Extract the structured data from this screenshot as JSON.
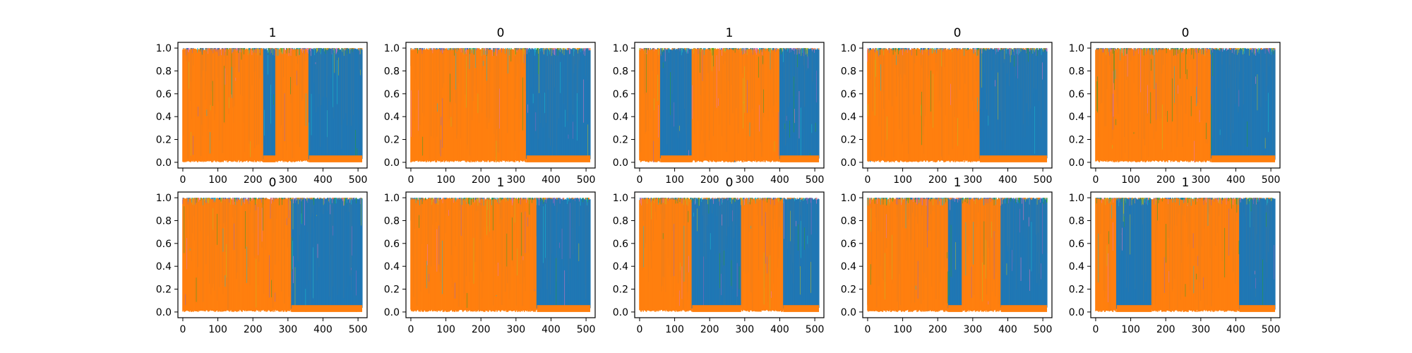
{
  "colors": {
    "blue": "#1f77b4",
    "orange": "#ff7f0e",
    "cyan": "#17becf",
    "olive": "#bcbd22",
    "green": "#2ca02c",
    "pink": "#e377c2",
    "purple": "#9467bd",
    "frame": "#000000"
  },
  "chart_data": [
    {
      "type": "line",
      "title": "1",
      "xlim": [
        -14,
        526
      ],
      "ylim": [
        -0.05,
        1.05
      ],
      "x_ticks": [
        0,
        100,
        200,
        300,
        400,
        500
      ],
      "y_ticks": [
        "0.0",
        "0.2",
        "0.4",
        "0.6",
        "0.8",
        "1.0"
      ],
      "series": [
        {
          "values": "high/low switching 0-1"
        }
      ],
      "orange_regions": [
        [
          0,
          230
        ],
        [
          265,
          360
        ]
      ],
      "blue_regions": [
        [
          230,
          265
        ],
        [
          360,
          512
        ]
      ],
      "grid": false
    },
    {
      "type": "line",
      "title": "0",
      "xlim": [
        -14,
        526
      ],
      "ylim": [
        -0.05,
        1.05
      ],
      "x_ticks": [
        0,
        100,
        200,
        300,
        400,
        500
      ],
      "y_ticks": [
        "0.0",
        "0.2",
        "0.4",
        "0.6",
        "0.8",
        "1.0"
      ],
      "orange_regions": [
        [
          0,
          330
        ]
      ],
      "blue_regions": [
        [
          330,
          512
        ]
      ],
      "grid": false
    },
    {
      "type": "line",
      "title": "1",
      "xlim": [
        -14,
        526
      ],
      "ylim": [
        -0.05,
        1.05
      ],
      "x_ticks": [
        0,
        100,
        200,
        300,
        400,
        500
      ],
      "y_ticks": [
        "0.0",
        "0.2",
        "0.4",
        "0.6",
        "0.8",
        "1.0"
      ],
      "orange_regions": [
        [
          0,
          60
        ],
        [
          150,
          400
        ]
      ],
      "blue_regions": [
        [
          60,
          150
        ],
        [
          400,
          512
        ]
      ],
      "grid": false
    },
    {
      "type": "line",
      "title": "0",
      "xlim": [
        -14,
        526
      ],
      "ylim": [
        -0.05,
        1.05
      ],
      "x_ticks": [
        0,
        100,
        200,
        300,
        400,
        500
      ],
      "y_ticks": [
        "0.0",
        "0.2",
        "0.4",
        "0.6",
        "0.8",
        "1.0"
      ],
      "orange_regions": [
        [
          0,
          320
        ]
      ],
      "blue_regions": [
        [
          320,
          512
        ]
      ],
      "grid": false
    },
    {
      "type": "line",
      "title": "0",
      "xlim": [
        -14,
        526
      ],
      "ylim": [
        -0.05,
        1.05
      ],
      "x_ticks": [
        0,
        100,
        200,
        300,
        400,
        500
      ],
      "y_ticks": [
        "0.0",
        "0.2",
        "0.4",
        "0.6",
        "0.8",
        "1.0"
      ],
      "orange_regions": [
        [
          0,
          330
        ]
      ],
      "blue_regions": [
        [
          330,
          512
        ]
      ],
      "grid": false
    },
    {
      "type": "line",
      "title": "0",
      "xlim": [
        -14,
        526
      ],
      "ylim": [
        -0.05,
        1.05
      ],
      "x_ticks": [
        0,
        100,
        200,
        300,
        400,
        500
      ],
      "y_ticks": [
        "0.0",
        "0.2",
        "0.4",
        "0.6",
        "0.8",
        "1.0"
      ],
      "orange_regions": [
        [
          0,
          310
        ]
      ],
      "blue_regions": [
        [
          310,
          512
        ]
      ],
      "grid": false
    },
    {
      "type": "line",
      "title": "1",
      "xlim": [
        -14,
        526
      ],
      "ylim": [
        -0.05,
        1.05
      ],
      "x_ticks": [
        0,
        100,
        200,
        300,
        400,
        500
      ],
      "y_ticks": [
        "0.0",
        "0.2",
        "0.4",
        "0.6",
        "0.8",
        "1.0"
      ],
      "orange_regions": [
        [
          0,
          360
        ]
      ],
      "blue_regions": [
        [
          360,
          512
        ]
      ],
      "grid": false
    },
    {
      "type": "line",
      "title": "0",
      "xlim": [
        -14,
        526
      ],
      "ylim": [
        -0.05,
        1.05
      ],
      "x_ticks": [
        0,
        100,
        200,
        300,
        400,
        500
      ],
      "y_ticks": [
        "0.0",
        "0.2",
        "0.4",
        "0.6",
        "0.8",
        "1.0"
      ],
      "orange_regions": [
        [
          0,
          150
        ],
        [
          290,
          410
        ]
      ],
      "blue_regions": [
        [
          150,
          290
        ],
        [
          410,
          512
        ]
      ],
      "grid": false
    },
    {
      "type": "line",
      "title": "1",
      "xlim": [
        -14,
        526
      ],
      "ylim": [
        -0.05,
        1.05
      ],
      "x_ticks": [
        0,
        100,
        200,
        300,
        400,
        500
      ],
      "y_ticks": [
        "0.0",
        "0.2",
        "0.4",
        "0.6",
        "0.8",
        "1.0"
      ],
      "orange_regions": [
        [
          0,
          230
        ],
        [
          270,
          380
        ]
      ],
      "blue_regions": [
        [
          230,
          270
        ],
        [
          380,
          512
        ]
      ],
      "grid": false
    },
    {
      "type": "line",
      "title": "1",
      "xlim": [
        -14,
        526
      ],
      "ylim": [
        -0.05,
        1.05
      ],
      "x_ticks": [
        0,
        100,
        200,
        300,
        400,
        500
      ],
      "y_ticks": [
        "0.0",
        "0.2",
        "0.4",
        "0.6",
        "0.8",
        "1.0"
      ],
      "orange_regions": [
        [
          0,
          60
        ],
        [
          160,
          410
        ]
      ],
      "blue_regions": [
        [
          60,
          160
        ],
        [
          410,
          512
        ]
      ],
      "grid": false
    }
  ]
}
